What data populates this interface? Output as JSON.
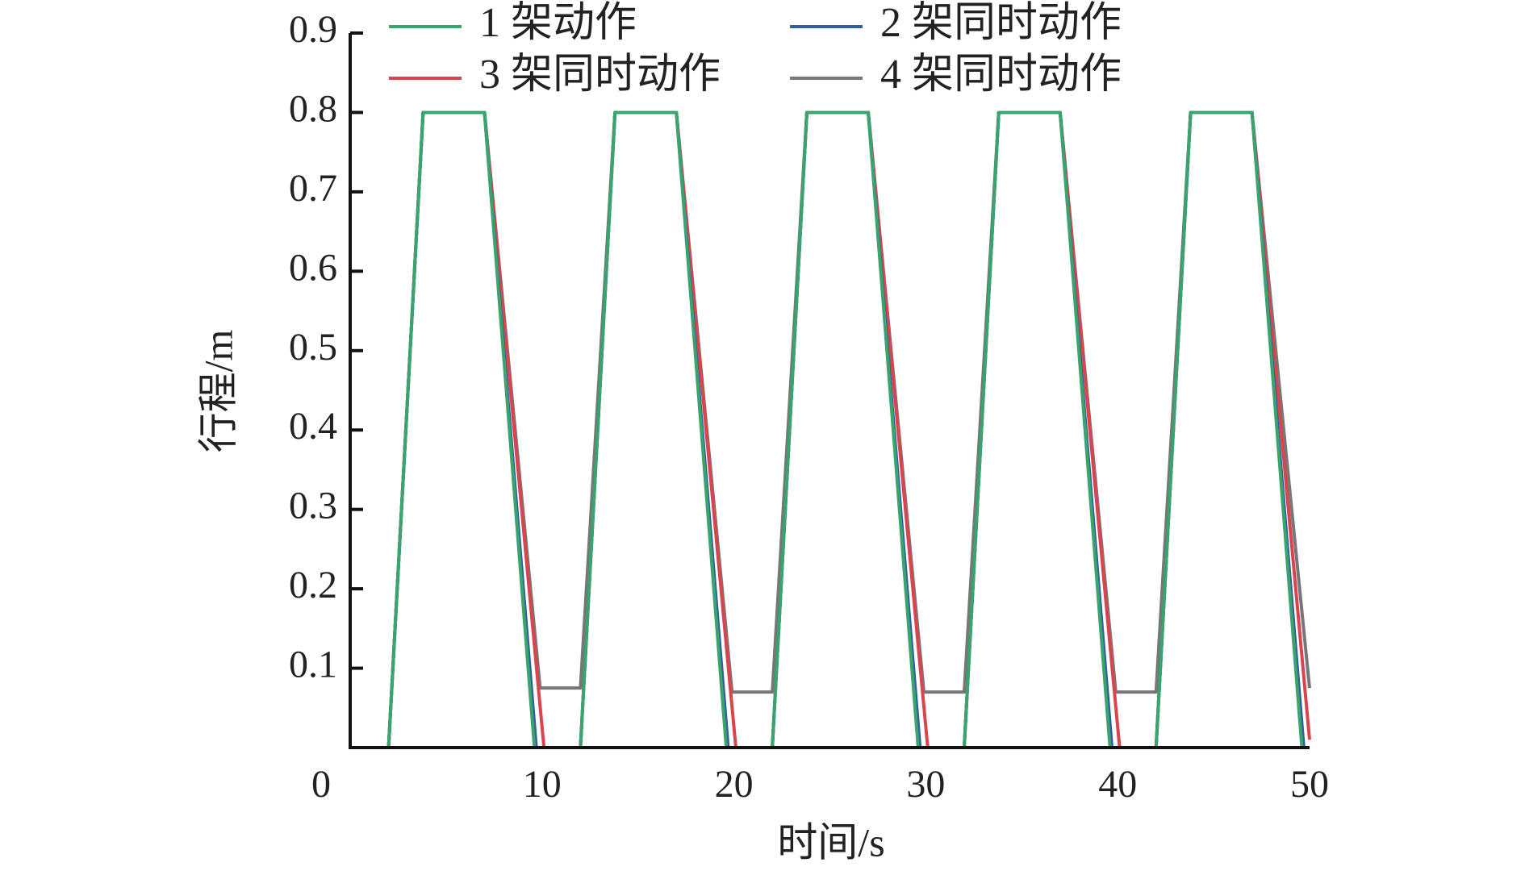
{
  "chart_data": {
    "type": "line",
    "xlabel": "时间/s",
    "ylabel": "行程/m",
    "xlim": [
      0,
      50
    ],
    "ylim": [
      0,
      0.9
    ],
    "xticks": [
      0,
      10,
      20,
      30,
      40,
      50
    ],
    "yticks": [
      0.1,
      0.2,
      0.3,
      0.4,
      0.5,
      0.6,
      0.7,
      0.8,
      0.9
    ],
    "series": [
      {
        "name": "1 架动作",
        "color": "#3aa46e",
        "x": [
          0,
          2,
          3.8,
          7,
          9.6,
          12,
          13.8,
          17,
          19.6,
          22,
          23.8,
          27,
          29.6,
          32,
          33.8,
          37,
          39.6,
          42,
          43.8,
          47,
          49.6,
          50
        ],
        "values": [
          0,
          0,
          0.8,
          0.8,
          0,
          0,
          0.8,
          0.8,
          0,
          0,
          0.8,
          0.8,
          0,
          0,
          0.8,
          0.8,
          0,
          0,
          0.8,
          0.8,
          0,
          0
        ]
      },
      {
        "name": "2 架同时动作",
        "color": "#2f5f9e",
        "x": [
          0,
          2,
          3.8,
          7,
          9.7,
          12,
          13.8,
          17,
          19.7,
          22,
          23.8,
          27,
          29.7,
          32,
          33.8,
          37,
          39.7,
          42,
          43.8,
          47,
          49.7,
          50
        ],
        "values": [
          0,
          0,
          0.8,
          0.8,
          0,
          0,
          0.8,
          0.8,
          0,
          0,
          0.8,
          0.8,
          0,
          0,
          0.8,
          0.8,
          0,
          0,
          0.8,
          0.8,
          0,
          0
        ]
      },
      {
        "name": "3 架同时动作",
        "color": "#d9454e",
        "x": [
          0,
          2,
          3.8,
          7,
          10.1,
          12,
          13.8,
          17,
          20.1,
          22,
          23.8,
          27,
          30.1,
          32,
          33.8,
          37,
          40.1,
          42,
          43.8,
          47,
          50
        ],
        "values": [
          0,
          0,
          0.8,
          0.8,
          0,
          0,
          0.8,
          0.8,
          0,
          0,
          0.8,
          0.8,
          0,
          0,
          0.8,
          0.8,
          0,
          0,
          0.8,
          0.8,
          0.01
        ]
      },
      {
        "name": "4 架同时动作",
        "color": "#777777",
        "x": [
          0,
          2,
          3.8,
          7,
          9.9,
          12,
          13.8,
          17,
          19.9,
          22,
          23.8,
          27,
          29.9,
          32,
          33.8,
          37,
          39.9,
          42,
          43.8,
          47,
          50
        ],
        "values": [
          0,
          0,
          0.8,
          0.8,
          0.075,
          0.075,
          0.8,
          0.8,
          0.07,
          0.07,
          0.8,
          0.8,
          0.07,
          0.07,
          0.8,
          0.8,
          0.07,
          0.07,
          0.8,
          0.8,
          0.075
        ]
      }
    ]
  }
}
